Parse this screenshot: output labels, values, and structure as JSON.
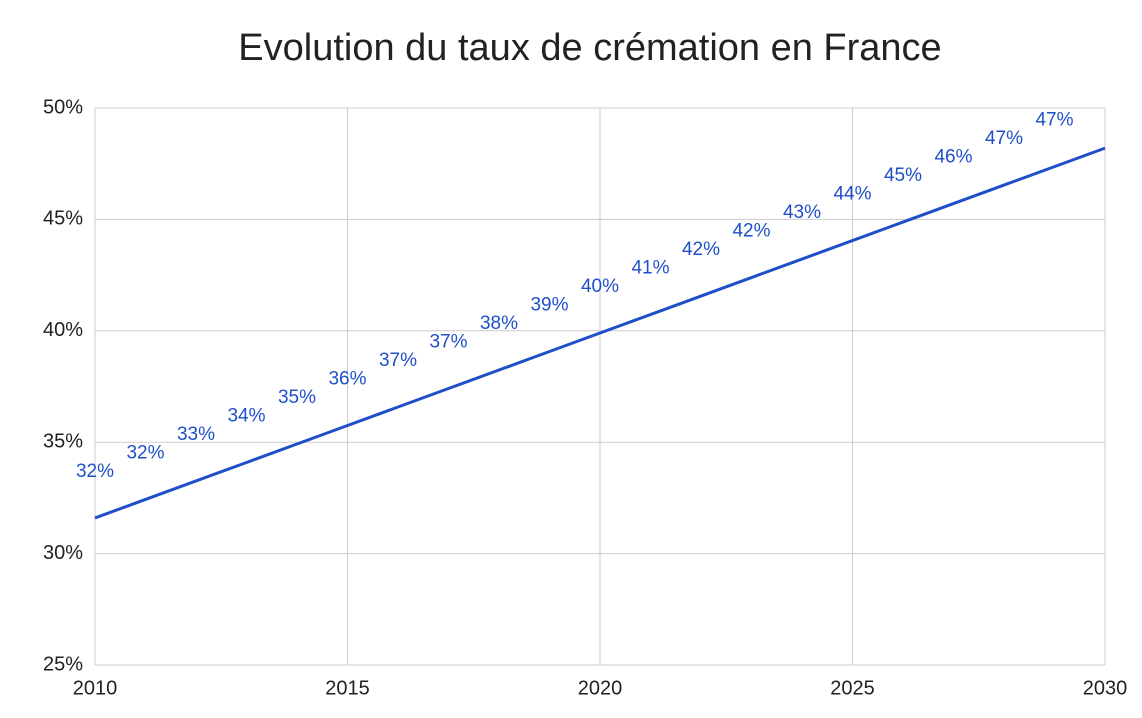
{
  "chart_data": {
    "type": "line",
    "title": "Evolution du taux de crémation en France",
    "x": [
      2010,
      2011,
      2012,
      2013,
      2014,
      2015,
      2016,
      2017,
      2018,
      2019,
      2020,
      2021,
      2022,
      2023,
      2024,
      2025,
      2026,
      2027,
      2028,
      2029,
      2030
    ],
    "series": [
      {
        "color": "#1f4fc8",
        "values": [
          31.6,
          32.43,
          33.26,
          34.09,
          34.92,
          35.75,
          36.58,
          37.41,
          38.24,
          39.07,
          39.9,
          40.73,
          41.56,
          42.39,
          43.22,
          44.05,
          44.88,
          45.71,
          46.54,
          47.37,
          48.2
        ],
        "value_labels": [
          "32%",
          "32%",
          "33%",
          "34%",
          "35%",
          "36%",
          "37%",
          "37%",
          "38%",
          "39%",
          "40%",
          "41%",
          "42%",
          "42%",
          "43%",
          "44%",
          "45%",
          "46%",
          "47%",
          "47%",
          null
        ]
      }
    ],
    "xlim": [
      2010,
      2030
    ],
    "xticks": [
      2010,
      2015,
      2020,
      2025,
      2030
    ],
    "ylim": [
      25,
      50
    ],
    "yticks": [
      {
        "value": 25,
        "label": "25%"
      },
      {
        "value": 30,
        "label": "30%"
      },
      {
        "value": 35,
        "label": "35%"
      },
      {
        "value": 40,
        "label": "40%"
      },
      {
        "value": 45,
        "label": "45%"
      },
      {
        "value": 50,
        "label": "50%"
      }
    ],
    "grid": true
  }
}
